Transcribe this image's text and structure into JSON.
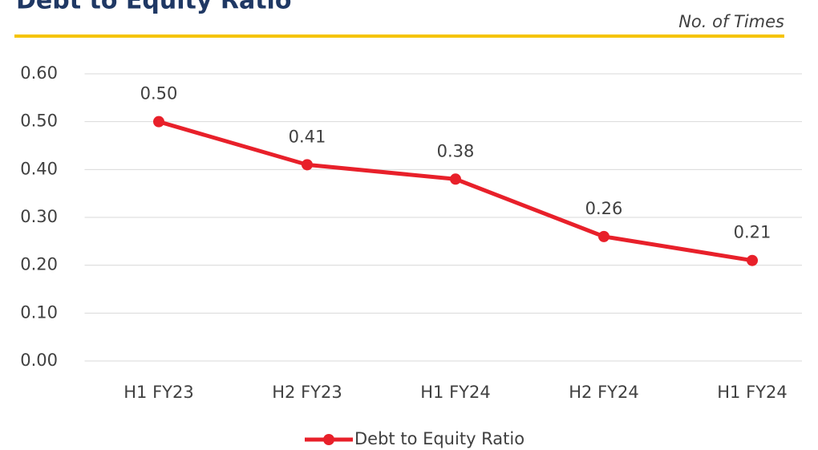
{
  "chart_data": {
    "type": "line",
    "title": "Debt to Equity Ratio",
    "unit_label": "No. of Times",
    "categories": [
      "H1 FY23",
      "H2 FY23",
      "H1 FY24",
      "H2 FY24",
      "H1 FY24"
    ],
    "series": [
      {
        "name": "Debt to Equity Ratio",
        "color": "#e8202a",
        "values": [
          0.5,
          0.41,
          0.38,
          0.26,
          0.21
        ],
        "value_labels": [
          "0.50",
          "0.41",
          "0.38",
          "0.26",
          "0.21"
        ]
      }
    ],
    "ylim": [
      0,
      0.6
    ],
    "yticks": [
      {
        "value": 0,
        "label": "0.00"
      },
      {
        "value": 0.1,
        "label": "0.10"
      },
      {
        "value": 0.2,
        "label": "0.20"
      },
      {
        "value": 0.3,
        "label": "0.30"
      },
      {
        "value": 0.4,
        "label": "0.40"
      },
      {
        "value": 0.5,
        "label": "0.50"
      },
      {
        "value": 0.6,
        "label": "0.60"
      }
    ],
    "grid": true,
    "legend": "bottom"
  }
}
